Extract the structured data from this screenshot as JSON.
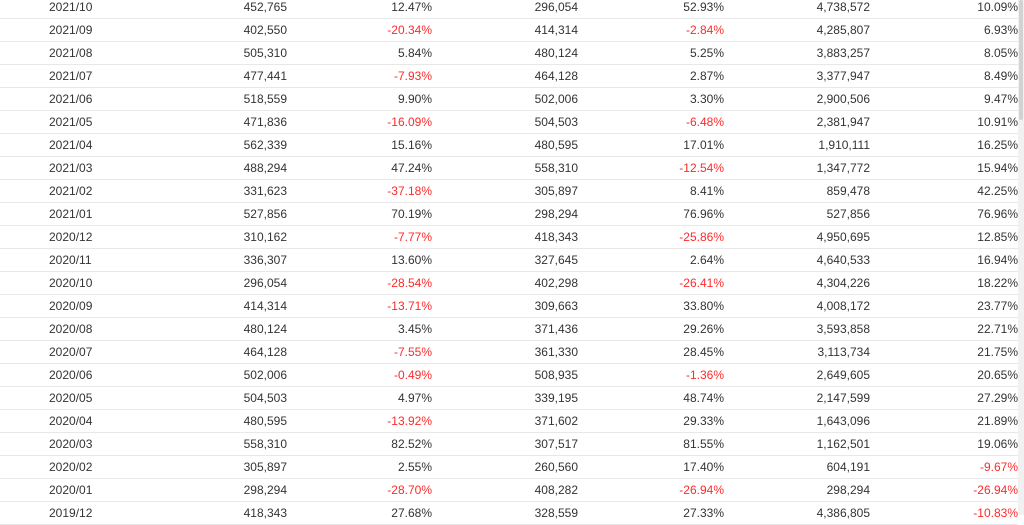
{
  "colors": {
    "negative": "#ff2a2a",
    "text": "#333333",
    "divider": "#e8e8e8"
  },
  "rows": [
    [
      "2021/10",
      "452,765",
      "12.47%",
      "296,054",
      "52.93%",
      "4,738,572",
      "10.09%"
    ],
    [
      "2021/09",
      "402,550",
      "-20.34%",
      "414,314",
      "-2.84%",
      "4,285,807",
      "6.93%"
    ],
    [
      "2021/08",
      "505,310",
      "5.84%",
      "480,124",
      "5.25%",
      "3,883,257",
      "8.05%"
    ],
    [
      "2021/07",
      "477,441",
      "-7.93%",
      "464,128",
      "2.87%",
      "3,377,947",
      "8.49%"
    ],
    [
      "2021/06",
      "518,559",
      "9.90%",
      "502,006",
      "3.30%",
      "2,900,506",
      "9.47%"
    ],
    [
      "2021/05",
      "471,836",
      "-16.09%",
      "504,503",
      "-6.48%",
      "2,381,947",
      "10.91%"
    ],
    [
      "2021/04",
      "562,339",
      "15.16%",
      "480,595",
      "17.01%",
      "1,910,111",
      "16.25%"
    ],
    [
      "2021/03",
      "488,294",
      "47.24%",
      "558,310",
      "-12.54%",
      "1,347,772",
      "15.94%"
    ],
    [
      "2021/02",
      "331,623",
      "-37.18%",
      "305,897",
      "8.41%",
      "859,478",
      "42.25%"
    ],
    [
      "2021/01",
      "527,856",
      "70.19%",
      "298,294",
      "76.96%",
      "527,856",
      "76.96%"
    ],
    [
      "2020/12",
      "310,162",
      "-7.77%",
      "418,343",
      "-25.86%",
      "4,950,695",
      "12.85%"
    ],
    [
      "2020/11",
      "336,307",
      "13.60%",
      "327,645",
      "2.64%",
      "4,640,533",
      "16.94%"
    ],
    [
      "2020/10",
      "296,054",
      "-28.54%",
      "402,298",
      "-26.41%",
      "4,304,226",
      "18.22%"
    ],
    [
      "2020/09",
      "414,314",
      "-13.71%",
      "309,663",
      "33.80%",
      "4,008,172",
      "23.77%"
    ],
    [
      "2020/08",
      "480,124",
      "3.45%",
      "371,436",
      "29.26%",
      "3,593,858",
      "22.71%"
    ],
    [
      "2020/07",
      "464,128",
      "-7.55%",
      "361,330",
      "28.45%",
      "3,113,734",
      "21.75%"
    ],
    [
      "2020/06",
      "502,006",
      "-0.49%",
      "508,935",
      "-1.36%",
      "2,649,605",
      "20.65%"
    ],
    [
      "2020/05",
      "504,503",
      "4.97%",
      "339,195",
      "48.74%",
      "2,147,599",
      "27.29%"
    ],
    [
      "2020/04",
      "480,595",
      "-13.92%",
      "371,602",
      "29.33%",
      "1,643,096",
      "21.89%"
    ],
    [
      "2020/03",
      "558,310",
      "82.52%",
      "307,517",
      "81.55%",
      "1,162,501",
      "19.06%"
    ],
    [
      "2020/02",
      "305,897",
      "2.55%",
      "260,560",
      "17.40%",
      "604,191",
      "-9.67%"
    ],
    [
      "2020/01",
      "298,294",
      "-28.70%",
      "408,282",
      "-26.94%",
      "298,294",
      "-26.94%"
    ],
    [
      "2019/12",
      "418,343",
      "27.68%",
      "328,559",
      "27.33%",
      "4,386,805",
      "-10.83%"
    ]
  ]
}
